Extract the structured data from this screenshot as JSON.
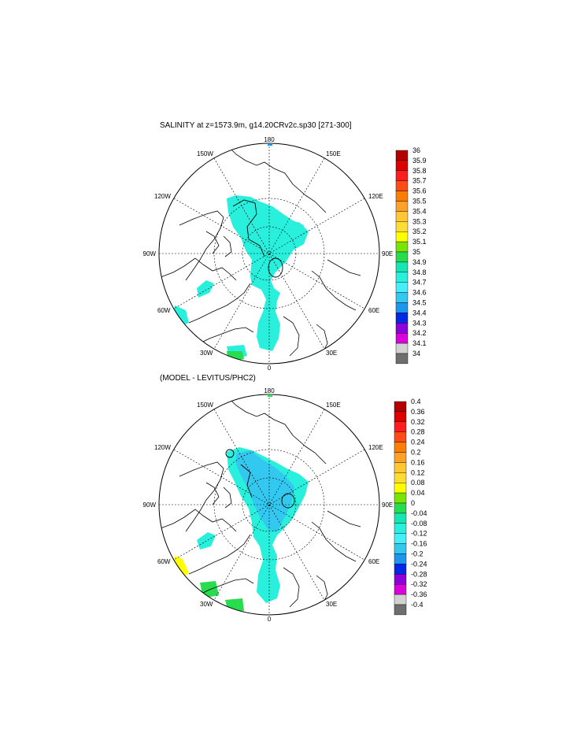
{
  "top": {
    "title": "SALINITY at z=1573.9m, g14.20CRv2c.sp30 [271-300]",
    "lon_labels": {
      "top": "180",
      "bottom": "0",
      "left": "90W",
      "right": "90E",
      "ul1": "150W",
      "ur1": "150E",
      "ul2": "120W",
      "ur2": "120E",
      "ll1": "60W",
      "lr1": "60E",
      "ll2": "30W",
      "lr2": "30E"
    },
    "colorbar": {
      "labels": [
        "36",
        "35.9",
        "35.8",
        "35.7",
        "35.6",
        "35.5",
        "35.4",
        "35.3",
        "35.2",
        "35.1",
        "35",
        "34.9",
        "34.8",
        "34.7",
        "34.6",
        "34.5",
        "34.4",
        "34.3",
        "34.2",
        "34.1",
        "34"
      ],
      "colors": [
        "#b40000",
        "#dc0000",
        "#ff1e1e",
        "#ff4b14",
        "#ff7d00",
        "#ffa028",
        "#ffc832",
        "#ffdc32",
        "#ffff00",
        "#78e600",
        "#28dc50",
        "#14e6b4",
        "#28f0dc",
        "#46eefa",
        "#32c8f0",
        "#1e96f0",
        "#0028e6",
        "#8c00dc",
        "#dc00dc",
        "#d2d2d2",
        "#6e6e6e"
      ]
    }
  },
  "bottom": {
    "title": "(MODEL - LEVITUS/PHC2)",
    "lon_labels": {
      "top": "180",
      "bottom": "0",
      "left": "90W",
      "right": "90E",
      "ul1": "150W",
      "ur1": "150E",
      "ul2": "120W",
      "ur2": "120E",
      "ll1": "60W",
      "lr1": "60E",
      "ll2": "30W",
      "lr2": "30E"
    },
    "colorbar": {
      "labels": [
        "0.4",
        "0.36",
        "0.32",
        "0.28",
        "0.24",
        "0.2",
        "0.16",
        "0.12",
        "0.08",
        "0.04",
        "0",
        "-0.04",
        "-0.08",
        "-0.12",
        "-0.16",
        "-0.2",
        "-0.24",
        "-0.28",
        "-0.32",
        "-0.36",
        "-0.4"
      ],
      "colors": [
        "#b40000",
        "#dc0000",
        "#ff1e1e",
        "#ff4b14",
        "#ff7d00",
        "#ffa028",
        "#ffc832",
        "#ffdc32",
        "#ffff00",
        "#78e600",
        "#28dc50",
        "#14e6b4",
        "#28f0dc",
        "#46eefa",
        "#32c8f0",
        "#1e96f0",
        "#0028e6",
        "#8c00dc",
        "#dc00dc",
        "#d2d2d2",
        "#6e6e6e"
      ]
    }
  }
}
